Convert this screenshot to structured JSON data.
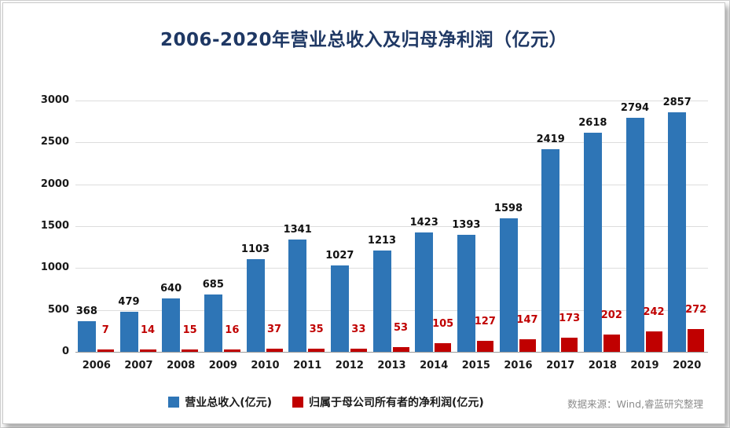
{
  "card": {
    "title": "2006-2020年营业总收入及归母净利润（亿元）",
    "source_note": "数据来源：Wind,睿蓝研究整理"
  },
  "colors": {
    "revenue_bar": "#2E75B6",
    "profit_bar": "#C00000",
    "title_text": "#1F3864",
    "gridline": "#DDDDDD",
    "baseline": "#9A9A9A",
    "source_text": "#8C8C8C"
  },
  "chart_data": {
    "type": "bar",
    "title": "2006-2020年营业总收入及归母净利润（亿元）",
    "categories": [
      "2006",
      "2007",
      "2008",
      "2009",
      "2010",
      "2011",
      "2012",
      "2013",
      "2014",
      "2015",
      "2016",
      "2017",
      "2018",
      "2019",
      "2020"
    ],
    "series": [
      {
        "name": "营业总收入(亿元)",
        "color": "#2E75B6",
        "values": [
          368,
          479,
          640,
          685,
          1103,
          1341,
          1027,
          1213,
          1423,
          1393,
          1598,
          2419,
          2618,
          2794,
          2857
        ]
      },
      {
        "name": "归属于母公司所有者的净利润(亿元)",
        "color": "#C00000",
        "values": [
          7,
          14,
          15,
          16,
          37,
          35,
          33,
          53,
          105,
          127,
          147,
          173,
          202,
          242,
          272
        ]
      }
    ],
    "xlabel": "",
    "ylabel": "",
    "ylim": [
      0,
      3000
    ],
    "yticks": [
      0,
      500,
      1000,
      1500,
      2000,
      2500,
      3000
    ],
    "grid": true,
    "data_labels": true,
    "legend_position": "bottom"
  }
}
